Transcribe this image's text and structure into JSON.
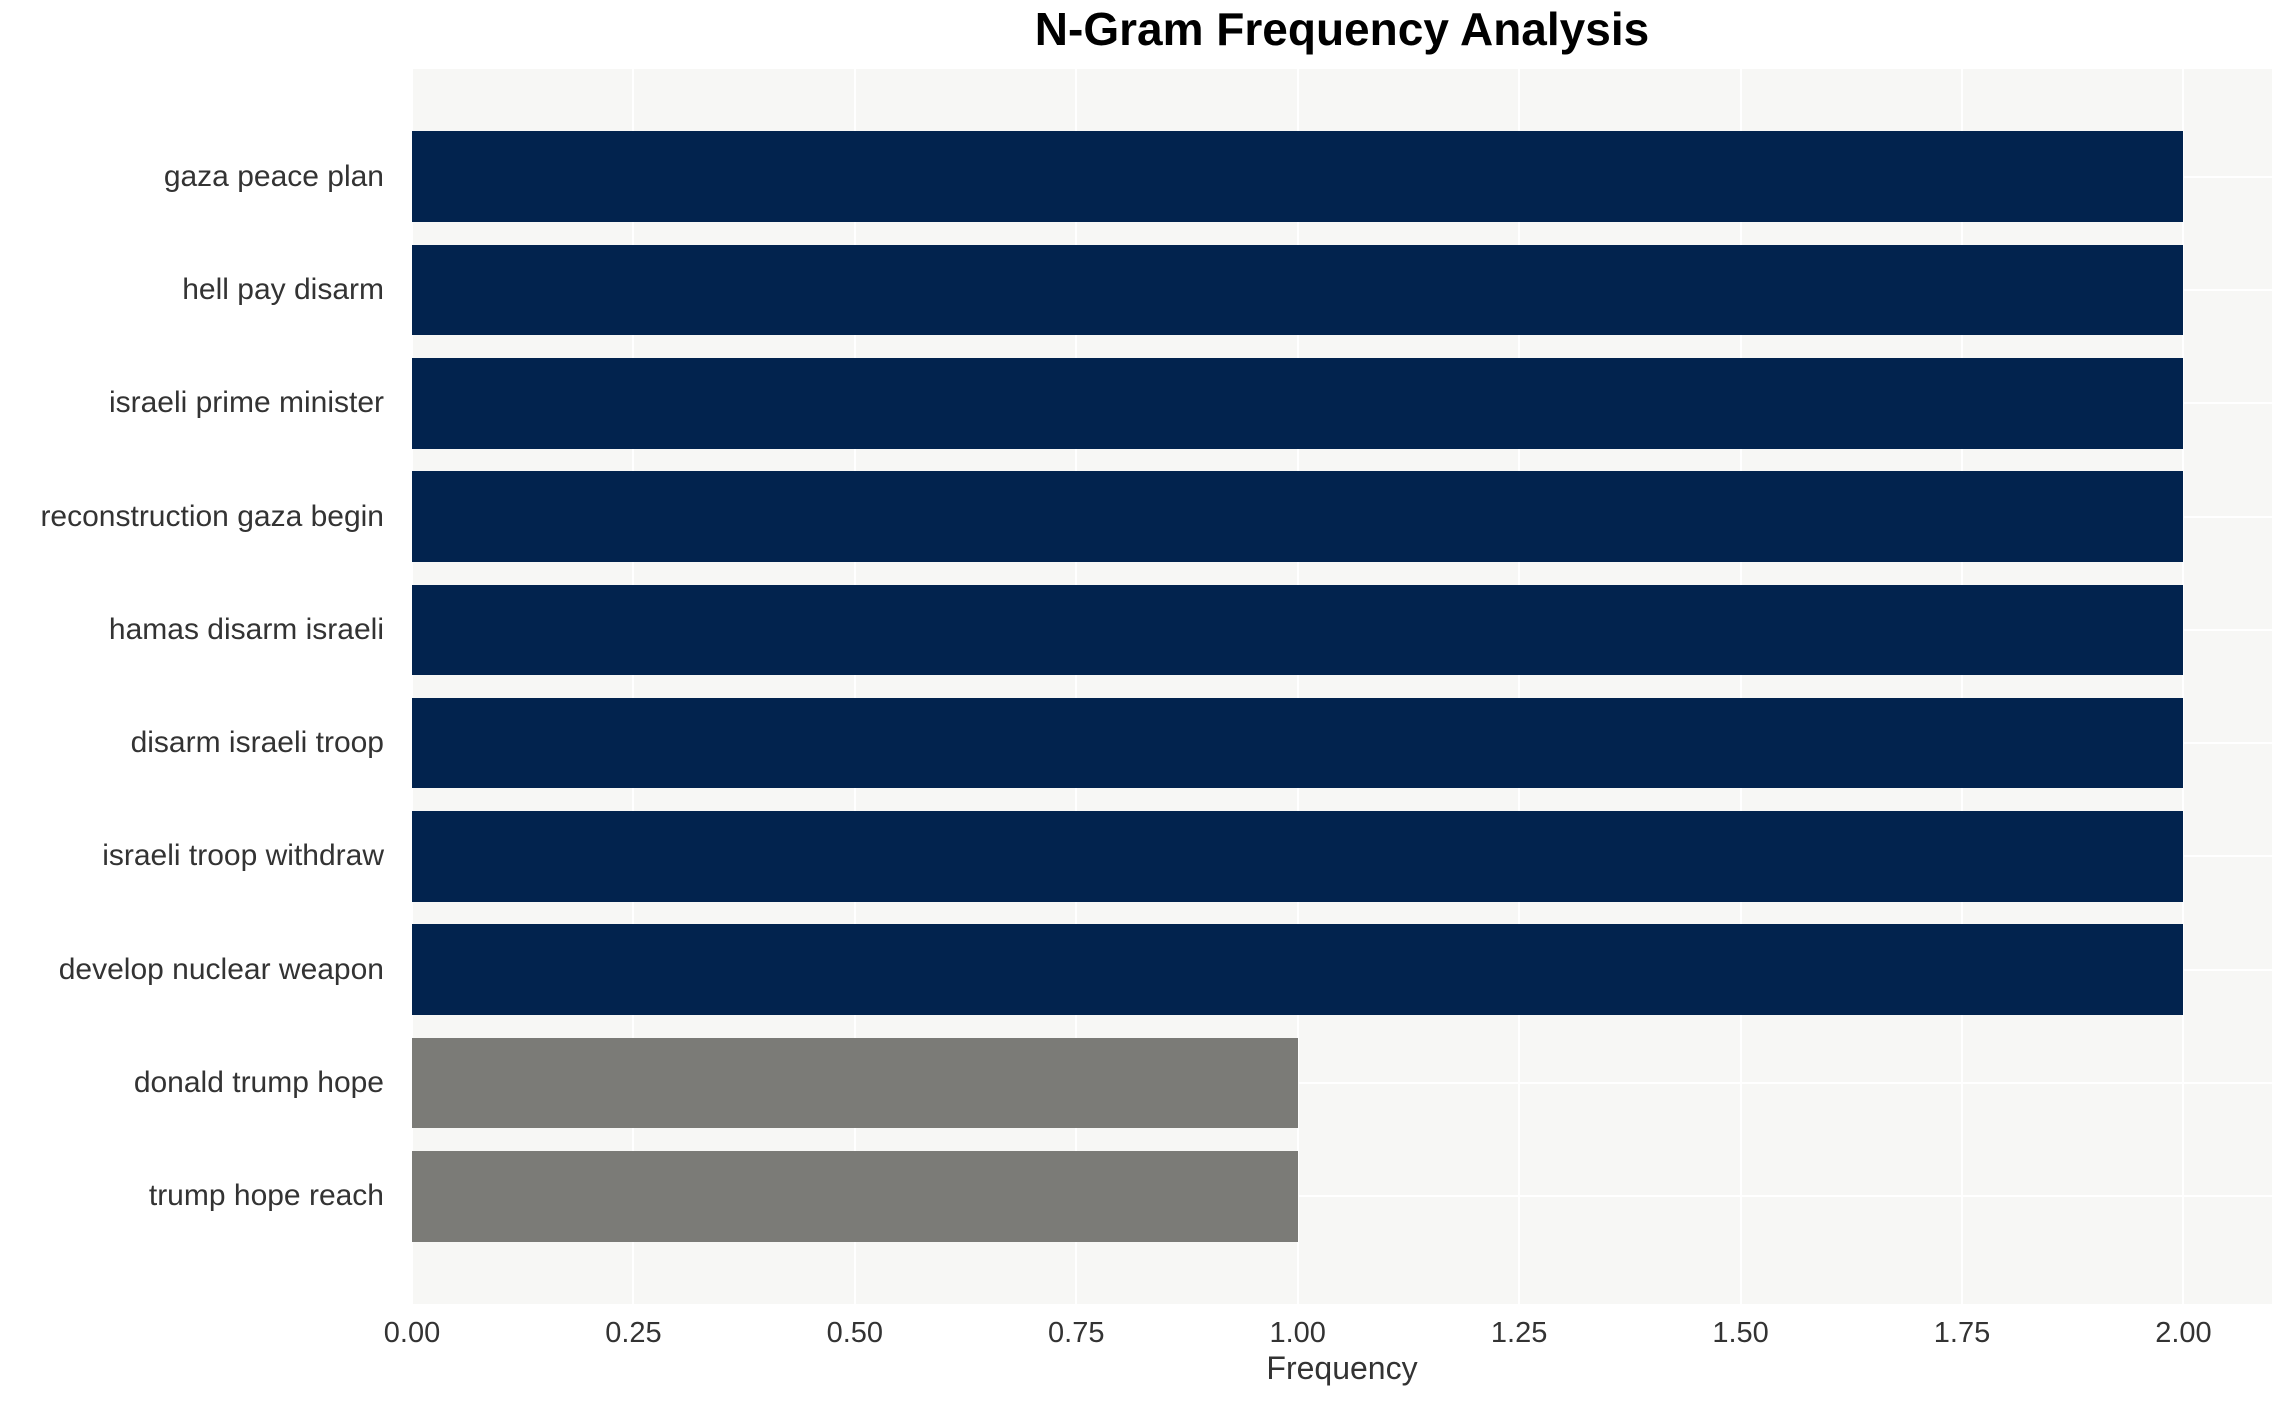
{
  "chart_data": {
    "type": "bar",
    "orientation": "horizontal",
    "title": "N-Gram Frequency Analysis",
    "xlabel": "Frequency",
    "ylabel": "",
    "categories": [
      "gaza peace plan",
      "hell pay disarm",
      "israeli prime minister",
      "reconstruction gaza begin",
      "hamas disarm israeli",
      "disarm israeli troop",
      "israeli troop withdraw",
      "develop nuclear weapon",
      "donald trump hope",
      "trump hope reach"
    ],
    "values": [
      2.0,
      2.0,
      2.0,
      2.0,
      2.0,
      2.0,
      2.0,
      2.0,
      1.0,
      1.0
    ],
    "bar_colors": [
      "#02234E",
      "#02234E",
      "#02234E",
      "#02234E",
      "#02234E",
      "#02234E",
      "#02234E",
      "#02234E",
      "#7B7B77",
      "#7B7B77"
    ],
    "xlim": [
      0,
      2.1
    ],
    "xticks": [
      {
        "value": 0.0,
        "label": "0.00"
      },
      {
        "value": 0.25,
        "label": "0.25"
      },
      {
        "value": 0.5,
        "label": "0.50"
      },
      {
        "value": 0.75,
        "label": "0.75"
      },
      {
        "value": 1.0,
        "label": "1.00"
      },
      {
        "value": 1.25,
        "label": "1.25"
      },
      {
        "value": 1.5,
        "label": "1.50"
      },
      {
        "value": 1.75,
        "label": "1.75"
      },
      {
        "value": 2.0,
        "label": "2.00"
      }
    ],
    "grid": "on",
    "legend": "none",
    "colors": {
      "plot_background": "#F7F7F5",
      "page_background": "#FFFFFF",
      "grid_line": "#FFFFFF",
      "tick_text": "#333333",
      "title_text": "#000000",
      "primary_bar": "#02234E",
      "secondary_bar": "#7B7B77"
    }
  }
}
